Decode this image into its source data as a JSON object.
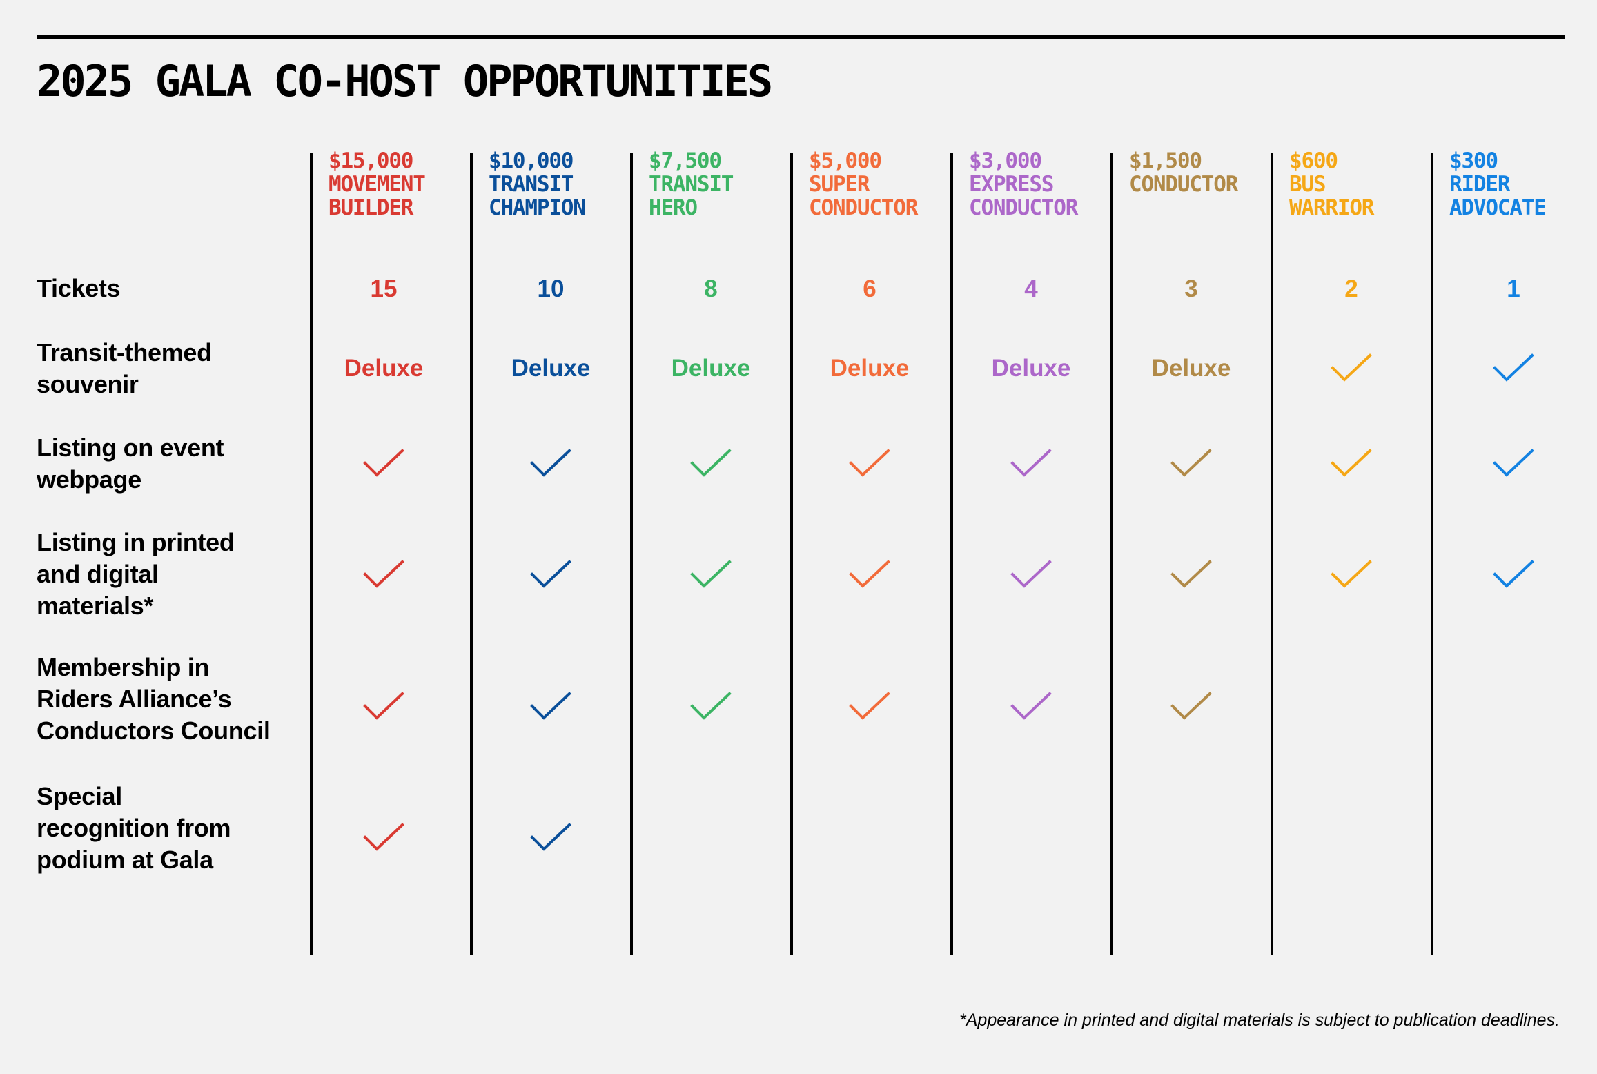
{
  "title": "2025 GALA CO-HOST OPPORTUNITIES",
  "footnote": "*Appearance in printed and digital materials is subject to publication deadlines.",
  "rows": [
    {
      "label_lines": [
        "Tickets"
      ]
    },
    {
      "label_lines": [
        "Transit-themed",
        "souvenir"
      ]
    },
    {
      "label_lines": [
        "Listing on event",
        "webpage"
      ]
    },
    {
      "label_lines": [
        "Listing in printed",
        "and digital",
        "materials*"
      ]
    },
    {
      "label_lines": [
        "Membership in",
        "Riders Alliance’s",
        "Conductors Council"
      ]
    },
    {
      "label_lines": [
        "Special",
        "recognition from",
        "podium at Gala"
      ]
    }
  ],
  "tiers": [
    {
      "amount": "$15,000",
      "name_lines": [
        "MOVEMENT",
        "BUILDER"
      ],
      "color": "#d93a32",
      "tickets": "15",
      "souvenir": "Deluxe",
      "benefits": {
        "event_webpage": true,
        "printed_digital": true,
        "conductors_council": true,
        "podium_recognition": true
      }
    },
    {
      "amount": "$10,000",
      "name_lines": [
        "TRANSIT",
        "CHAMPION"
      ],
      "color": "#0a4f9a",
      "tickets": "10",
      "souvenir": "Deluxe",
      "benefits": {
        "event_webpage": true,
        "printed_digital": true,
        "conductors_council": true,
        "podium_recognition": true
      }
    },
    {
      "amount": "$7,500",
      "name_lines": [
        "TRANSIT",
        "HERO"
      ],
      "color": "#3cb464",
      "tickets": "8",
      "souvenir": "Deluxe",
      "benefits": {
        "event_webpage": true,
        "printed_digital": true,
        "conductors_council": true,
        "podium_recognition": false
      }
    },
    {
      "amount": "$5,000",
      "name_lines": [
        "SUPER",
        "CONDUCTOR"
      ],
      "color": "#f26b3a",
      "tickets": "6",
      "souvenir": "Deluxe",
      "benefits": {
        "event_webpage": true,
        "printed_digital": true,
        "conductors_council": true,
        "podium_recognition": false
      }
    },
    {
      "amount": "$3,000",
      "name_lines": [
        "EXPRESS",
        "CONDUCTOR"
      ],
      "color": "#ac67c9",
      "tickets": "4",
      "souvenir": "Deluxe",
      "benefits": {
        "event_webpage": true,
        "printed_digital": true,
        "conductors_council": true,
        "podium_recognition": false
      }
    },
    {
      "amount": "$1,500",
      "name_lines": [
        "CONDUCTOR"
      ],
      "color": "#b18a48",
      "tickets": "3",
      "souvenir": "Deluxe",
      "benefits": {
        "event_webpage": true,
        "printed_digital": true,
        "conductors_council": true,
        "podium_recognition": false
      }
    },
    {
      "amount": "$600",
      "name_lines": [
        "BUS",
        "WARRIOR"
      ],
      "color": "#f5a716",
      "tickets": "2",
      "souvenir": "check",
      "benefits": {
        "event_webpage": true,
        "printed_digital": true,
        "conductors_council": false,
        "podium_recognition": false
      }
    },
    {
      "amount": "$300",
      "name_lines": [
        "RIDER",
        "ADVOCATE"
      ],
      "color": "#1382e2",
      "tickets": "1",
      "souvenir": "check",
      "benefits": {
        "event_webpage": true,
        "printed_digital": true,
        "conductors_council": false,
        "podium_recognition": false
      }
    }
  ],
  "icons": {
    "included": "check-mark-icon"
  }
}
